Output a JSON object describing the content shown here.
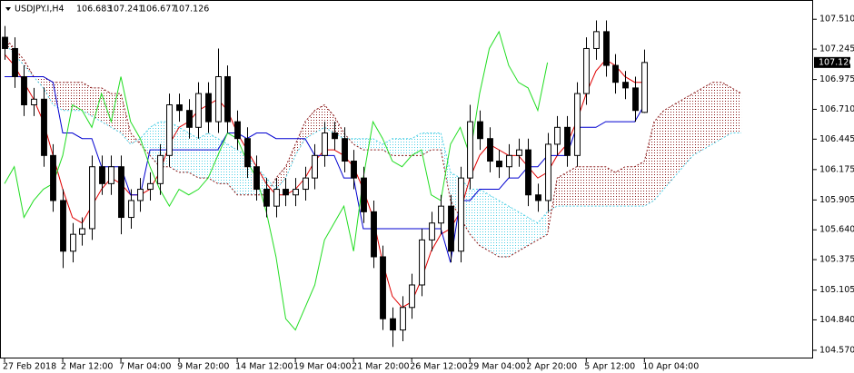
{
  "chart_data": {
    "type": "candlestick",
    "title": "USDJPY.I,H4",
    "xlim": [
      -0.47,
      83.4
    ],
    "ylim": [
      104.497,
      107.681
    ],
    "xticks": [
      {
        "value": 0,
        "label": "27 Feb 2018"
      },
      {
        "value": 6,
        "label": "2 Mar 12:00"
      },
      {
        "value": 12,
        "label": "7 Mar 04:00"
      },
      {
        "value": 18,
        "label": "9 Mar 20:00"
      },
      {
        "value": 24,
        "label": "14 Mar 12:00"
      },
      {
        "value": 30,
        "label": "19 Mar 04:00"
      },
      {
        "value": 36,
        "label": "21 Mar 20:00"
      },
      {
        "value": 42,
        "label": "26 Mar 12:00"
      },
      {
        "value": 48,
        "label": "29 Mar 04:00"
      },
      {
        "value": 54,
        "label": "2 Apr 20:00"
      },
      {
        "value": 60,
        "label": "5 Apr 12:00"
      },
      {
        "value": 66,
        "label": "10 Apr 04:00"
      }
    ],
    "yticks": [
      {
        "value": 107.51,
        "label": "107.510"
      },
      107.245,
      106.975,
      {
        "value": 106.71,
        "label": "106.710"
      },
      106.445,
      106.175,
      105.905,
      {
        "value": 105.64,
        "label": "105.640"
      },
      105.375,
      105.105,
      {
        "value": 104.84,
        "label": "104.840"
      },
      {
        "value": 104.57,
        "label": "104.570"
      }
    ],
    "candles": {
      "up_color": "#ffffff",
      "down_color": "#000000",
      "edge_color": "#000000",
      "open": [
        107.35,
        107.25,
        107.0,
        106.75,
        106.8,
        106.3,
        105.9,
        105.45,
        105.6,
        105.65,
        106.2,
        106.05,
        106.2,
        105.75,
        105.9,
        106.0,
        106.05,
        106.3,
        106.75,
        106.7,
        106.55,
        106.85,
        106.6,
        107.0,
        106.6,
        106.45,
        106.2,
        106.0,
        105.85,
        106.0,
        105.95,
        106.0,
        106.1,
        106.3,
        106.5,
        106.45,
        106.25,
        106.1,
        105.8,
        105.4,
        104.85,
        104.75,
        104.95,
        105.15,
        105.55,
        105.7,
        105.85,
        105.45,
        106.1,
        106.6,
        106.45,
        106.25,
        106.2,
        106.3,
        106.35,
        105.95,
        105.9,
        106.4,
        106.55,
        106.3,
        106.85,
        107.25,
        107.4,
        107.1,
        106.95,
        106.9,
        106.683
      ],
      "high": [
        107.45,
        107.35,
        107.1,
        106.9,
        106.9,
        106.4,
        106.0,
        105.7,
        105.75,
        106.3,
        106.3,
        106.3,
        106.3,
        106.0,
        106.1,
        106.15,
        106.4,
        106.85,
        106.85,
        106.8,
        106.95,
        106.95,
        107.25,
        107.1,
        106.7,
        106.55,
        106.3,
        106.1,
        106.1,
        106.1,
        106.1,
        106.2,
        106.4,
        106.6,
        106.6,
        106.55,
        106.35,
        106.2,
        105.9,
        105.5,
        104.95,
        105.05,
        105.25,
        105.65,
        105.8,
        105.95,
        105.95,
        106.2,
        106.75,
        106.7,
        106.55,
        106.35,
        106.4,
        106.45,
        106.45,
        106.05,
        106.5,
        106.65,
        106.65,
        106.95,
        107.35,
        107.5,
        107.5,
        107.2,
        107.05,
        107.0,
        107.241
      ],
      "low": [
        107.15,
        106.9,
        106.65,
        106.65,
        106.2,
        105.8,
        105.3,
        105.35,
        105.5,
        105.55,
        105.95,
        105.95,
        105.6,
        105.65,
        105.8,
        105.9,
        105.95,
        106.2,
        106.6,
        106.45,
        106.45,
        106.5,
        106.5,
        106.5,
        106.35,
        106.1,
        105.9,
        105.75,
        105.75,
        105.85,
        105.85,
        105.9,
        106.0,
        106.2,
        106.35,
        106.15,
        106.0,
        105.7,
        105.3,
        104.75,
        104.6,
        104.65,
        104.85,
        105.05,
        105.45,
        105.6,
        105.35,
        105.35,
        106.0,
        106.35,
        106.15,
        106.1,
        106.1,
        106.2,
        105.85,
        105.8,
        105.8,
        106.3,
        106.2,
        106.2,
        106.75,
        107.15,
        107.0,
        106.85,
        106.8,
        106.6,
        106.677
      ],
      "close": [
        107.25,
        107.0,
        106.75,
        106.8,
        106.3,
        105.9,
        105.45,
        105.6,
        105.65,
        106.2,
        106.05,
        106.2,
        105.75,
        105.9,
        106.0,
        106.05,
        106.3,
        106.75,
        106.7,
        106.55,
        106.85,
        106.6,
        107.0,
        106.6,
        106.45,
        106.2,
        106.0,
        105.85,
        106.0,
        105.95,
        106.0,
        106.1,
        106.3,
        106.5,
        106.45,
        106.25,
        106.1,
        105.8,
        105.4,
        104.85,
        104.75,
        104.95,
        105.15,
        105.55,
        105.7,
        105.85,
        105.45,
        106.1,
        106.6,
        106.45,
        106.25,
        106.2,
        106.3,
        106.35,
        105.95,
        105.9,
        106.4,
        106.55,
        106.3,
        106.85,
        107.25,
        107.4,
        107.1,
        106.95,
        106.9,
        106.7,
        107.126
      ]
    },
    "series": [
      {
        "color": "#e00000",
        "values": [
          107.2,
          107.1,
          106.95,
          106.8,
          106.6,
          106.3,
          106.0,
          105.75,
          105.7,
          105.85,
          106.0,
          106.1,
          106.05,
          105.95,
          105.95,
          106.0,
          106.15,
          106.4,
          106.55,
          106.6,
          106.7,
          106.75,
          106.8,
          106.7,
          106.5,
          106.35,
          106.2,
          106.05,
          105.95,
          105.95,
          106.0,
          106.1,
          106.25,
          106.35,
          106.35,
          106.3,
          106.2,
          106.0,
          105.75,
          105.35,
          105.05,
          104.95,
          105.0,
          105.2,
          105.45,
          105.6,
          105.65,
          105.8,
          106.1,
          106.3,
          106.4,
          106.35,
          106.3,
          106.3,
          106.2,
          106.1,
          106.15,
          106.3,
          106.4,
          106.6,
          106.85,
          107.05,
          107.15,
          107.1,
          107.0,
          106.95,
          106.95
        ]
      },
      {
        "color": "#0000d0",
        "values": [
          107.0,
          107.0,
          107.0,
          107.0,
          107.0,
          106.95,
          106.5,
          106.5,
          106.45,
          106.45,
          106.2,
          106.2,
          106.2,
          105.95,
          105.95,
          106.35,
          106.35,
          106.35,
          106.35,
          106.35,
          106.35,
          106.35,
          106.35,
          106.5,
          106.5,
          106.45,
          106.5,
          106.5,
          106.45,
          106.45,
          106.45,
          106.45,
          106.3,
          106.3,
          106.3,
          106.1,
          106.1,
          105.65,
          105.65,
          105.65,
          105.65,
          105.65,
          105.65,
          105.65,
          105.65,
          105.65,
          105.35,
          105.9,
          105.9,
          106.0,
          106.0,
          106.0,
          106.1,
          106.1,
          106.2,
          106.2,
          106.3,
          106.3,
          106.3,
          106.55,
          106.55,
          106.55,
          106.6,
          106.6,
          106.6,
          106.6,
          106.75
        ]
      },
      {
        "color": "#22dd22",
        "values": [
          106.05,
          106.2,
          105.75,
          105.9,
          106.0,
          106.05,
          106.3,
          106.75,
          106.7,
          106.55,
          106.85,
          106.6,
          107.0,
          106.6,
          106.45,
          106.2,
          106.0,
          105.85,
          106.0,
          105.95,
          106.0,
          106.1,
          106.3,
          106.5,
          106.45,
          106.25,
          106.1,
          105.8,
          105.4,
          104.85,
          104.75,
          104.95,
          105.15,
          105.55,
          105.7,
          105.85,
          105.45,
          106.1,
          106.6,
          106.45,
          106.25,
          106.2,
          106.3,
          106.35,
          105.95,
          105.9,
          106.4,
          106.55,
          106.3,
          106.85,
          107.25,
          107.4,
          107.1,
          106.95,
          106.9,
          106.7,
          107.126,
          null,
          null,
          null,
          null,
          null,
          null,
          null,
          null,
          null,
          null
        ]
      }
    ],
    "cloud": {
      "up_color": "#4fd0e6",
      "down_color": "#8b1a1a",
      "span_a": [
        107.3,
        107.2,
        107.1,
        107.0,
        106.9,
        106.75,
        106.7,
        106.7,
        106.7,
        106.65,
        106.6,
        106.55,
        106.5,
        106.4,
        106.45,
        106.55,
        106.6,
        106.6,
        106.55,
        106.5,
        106.45,
        106.5,
        106.45,
        106.4,
        106.35,
        106.3,
        106.2,
        106.1,
        106.0,
        106.1,
        106.3,
        106.45,
        106.5,
        106.55,
        106.5,
        106.45,
        106.45,
        106.45,
        106.45,
        106.4,
        106.45,
        106.45,
        106.45,
        106.5,
        106.5,
        106.5,
        106.15,
        106.1,
        106.0,
        106.0,
        105.95,
        105.9,
        105.85,
        105.8,
        105.75,
        105.7,
        105.8,
        105.85,
        105.85,
        105.85,
        105.85,
        105.85,
        105.85,
        105.85,
        105.85,
        105.85,
        105.85,
        105.9,
        106.0,
        106.1,
        106.2,
        106.3,
        106.35,
        106.4,
        106.45,
        106.5,
        106.5
      ],
      "span_b": [
        107.35,
        107.25,
        107.15,
        107.0,
        107.0,
        106.95,
        106.95,
        106.95,
        106.95,
        106.9,
        106.9,
        106.85,
        106.85,
        106.5,
        106.4,
        106.3,
        106.2,
        106.2,
        106.15,
        106.15,
        106.1,
        106.1,
        106.05,
        106.05,
        105.95,
        105.95,
        105.95,
        105.95,
        106.1,
        106.2,
        106.4,
        106.6,
        106.7,
        106.75,
        106.65,
        106.5,
        106.4,
        106.35,
        106.35,
        106.35,
        106.3,
        106.3,
        106.3,
        106.3,
        106.35,
        106.35,
        105.9,
        105.75,
        105.6,
        105.5,
        105.45,
        105.4,
        105.4,
        105.45,
        105.5,
        105.55,
        105.6,
        106.1,
        106.15,
        106.2,
        106.2,
        106.2,
        106.2,
        106.15,
        106.2,
        106.2,
        106.25,
        106.6,
        106.7,
        106.75,
        106.8,
        106.85,
        106.9,
        106.95,
        106.95,
        106.9,
        106.85
      ]
    }
  }
}
